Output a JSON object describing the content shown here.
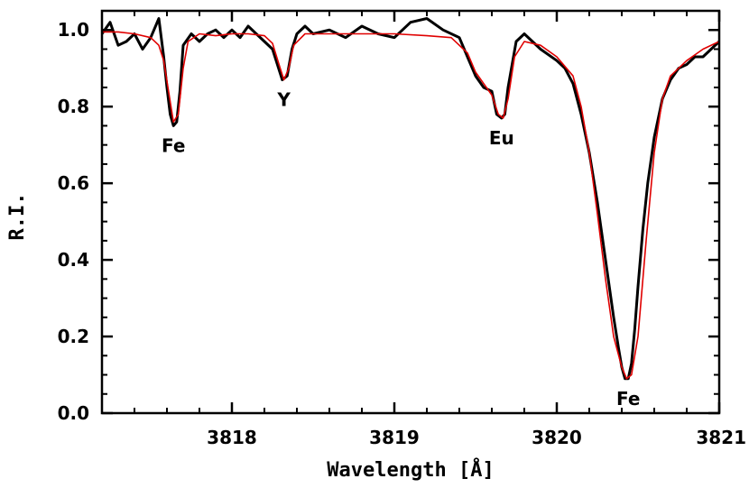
{
  "chart_data": {
    "type": "line",
    "xlabel": "Wavelength [Å]",
    "ylabel": "R.I.",
    "xlim": [
      3817.2,
      3821.0
    ],
    "ylim": [
      0.0,
      1.05
    ],
    "x_ticks": [
      3818,
      3819,
      3820,
      3821
    ],
    "x_tick_labels": [
      "3818",
      "3819",
      "3820",
      "3821"
    ],
    "y_ticks": [
      0.0,
      0.2,
      0.4,
      0.6,
      0.8,
      1.0
    ],
    "y_tick_labels": [
      "0.0",
      "0.2",
      "0.4",
      "0.6",
      "0.8",
      "1.0"
    ],
    "grid": false,
    "colors": {
      "observed": "#000000",
      "synthetic": "#e00000"
    },
    "series": [
      {
        "x": [
          3817.2,
          3817.25,
          3817.3,
          3817.35,
          3817.4,
          3817.45,
          3817.5,
          3817.55,
          3817.58,
          3817.6,
          3817.62,
          3817.64,
          3817.66,
          3817.68,
          3817.7,
          3817.75,
          3817.8,
          3817.85,
          3817.9,
          3817.95,
          3818.0,
          3818.05,
          3818.1,
          3818.15,
          3818.2,
          3818.25,
          3818.28,
          3818.31,
          3818.34,
          3818.37,
          3818.4,
          3818.45,
          3818.5,
          3818.6,
          3818.7,
          3818.8,
          3818.9,
          3819.0,
          3819.1,
          3819.2,
          3819.3,
          3819.4,
          3819.45,
          3819.5,
          3819.55,
          3819.6,
          3819.63,
          3819.66,
          3819.68,
          3819.7,
          3819.75,
          3819.8,
          3819.9,
          3820.0,
          3820.05,
          3820.1,
          3820.15,
          3820.2,
          3820.25,
          3820.3,
          3820.35,
          3820.38,
          3820.4,
          3820.42,
          3820.44,
          3820.46,
          3820.48,
          3820.5,
          3820.53,
          3820.56,
          3820.6,
          3820.65,
          3820.7,
          3820.75,
          3820.8,
          3820.85,
          3820.9,
          3820.95,
          3821.0
        ],
        "values": [
          0.99,
          1.02,
          0.96,
          0.97,
          0.99,
          0.95,
          0.98,
          1.03,
          0.93,
          0.85,
          0.78,
          0.75,
          0.76,
          0.84,
          0.96,
          0.99,
          0.97,
          0.99,
          1.0,
          0.98,
          1.0,
          0.98,
          1.01,
          0.99,
          0.97,
          0.95,
          0.91,
          0.87,
          0.88,
          0.95,
          0.99,
          1.01,
          0.99,
          1.0,
          0.98,
          1.01,
          0.99,
          0.98,
          1.02,
          1.03,
          1.0,
          0.98,
          0.93,
          0.88,
          0.85,
          0.84,
          0.78,
          0.77,
          0.78,
          0.85,
          0.97,
          0.99,
          0.95,
          0.92,
          0.9,
          0.86,
          0.78,
          0.68,
          0.55,
          0.4,
          0.25,
          0.17,
          0.12,
          0.09,
          0.09,
          0.13,
          0.22,
          0.33,
          0.48,
          0.6,
          0.72,
          0.82,
          0.87,
          0.9,
          0.91,
          0.93,
          0.93,
          0.95,
          0.97
        ]
      },
      {
        "x": [
          3817.2,
          3817.3,
          3817.4,
          3817.5,
          3817.55,
          3817.58,
          3817.61,
          3817.64,
          3817.67,
          3817.7,
          3817.73,
          3817.8,
          3817.9,
          3818.0,
          3818.1,
          3818.2,
          3818.25,
          3818.29,
          3818.32,
          3818.35,
          3818.38,
          3818.45,
          3818.6,
          3818.8,
          3819.0,
          3819.2,
          3819.35,
          3819.45,
          3819.5,
          3819.55,
          3819.6,
          3819.64,
          3819.67,
          3819.7,
          3819.74,
          3819.8,
          3819.9,
          3820.0,
          3820.1,
          3820.15,
          3820.2,
          3820.25,
          3820.3,
          3820.35,
          3820.4,
          3820.43,
          3820.46,
          3820.5,
          3820.55,
          3820.6,
          3820.65,
          3820.7,
          3820.8,
          3820.9,
          3821.0
        ],
        "values": [
          0.995,
          0.995,
          0.99,
          0.98,
          0.96,
          0.92,
          0.84,
          0.76,
          0.78,
          0.9,
          0.97,
          0.99,
          0.985,
          0.99,
          0.99,
          0.985,
          0.965,
          0.91,
          0.87,
          0.9,
          0.96,
          0.99,
          0.99,
          0.99,
          0.99,
          0.985,
          0.98,
          0.94,
          0.89,
          0.86,
          0.83,
          0.78,
          0.77,
          0.82,
          0.93,
          0.97,
          0.96,
          0.93,
          0.88,
          0.8,
          0.68,
          0.52,
          0.35,
          0.2,
          0.12,
          0.09,
          0.1,
          0.2,
          0.45,
          0.68,
          0.82,
          0.88,
          0.92,
          0.95,
          0.97
        ]
      }
    ],
    "annotations": [
      {
        "text": "Fe",
        "x": 3817.64,
        "y": 0.7,
        "anchor": "below"
      },
      {
        "text": "Y",
        "x": 3818.32,
        "y": 0.82,
        "anchor": "below"
      },
      {
        "text": "Eu",
        "x": 3819.66,
        "y": 0.72,
        "anchor": "below"
      },
      {
        "text": "Fe",
        "x": 3820.44,
        "y": 0.04,
        "anchor": "below"
      }
    ]
  }
}
